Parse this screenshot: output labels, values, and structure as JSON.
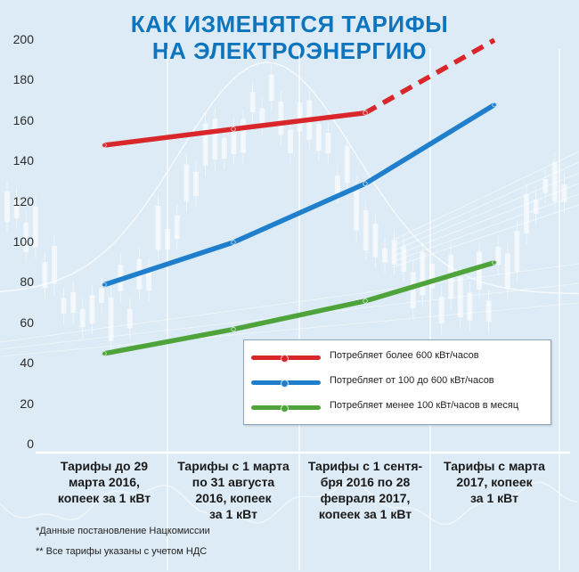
{
  "chart_data": {
    "type": "line",
    "title": "КАК ИЗМЕНЯТСЯ ТАРИФЫ\nНА ЭЛЕКТРОЭНЕРГИЮ",
    "title_lines": [
      "КАК ИЗМЕНЯТСЯ ТАРИФЫ",
      "НА ЭЛЕКТРОЭНЕРГИЮ"
    ],
    "ylim": [
      0,
      200
    ],
    "yticks": [
      0,
      20,
      40,
      60,
      80,
      100,
      120,
      140,
      160,
      180,
      200
    ],
    "categories": [
      [
        "Тарифы до 29",
        "марта 2016,",
        "копеек за 1 кВт"
      ],
      [
        "Тарифы с 1 марта",
        "по 31 августа",
        "2016, копеек",
        "за 1 кВт"
      ],
      [
        "Тарифы с 1 сентя-",
        "бря 2016 по 28",
        "февраля 2017,",
        "копеек за 1 кВт"
      ],
      [
        "Тарифы с марта",
        "2017, копеек",
        "за 1 кВт"
      ]
    ],
    "series": [
      {
        "name": "Потребляет более 600 кВт/часов",
        "color": "#d9262a",
        "values": [
          148,
          156,
          164,
          200
        ],
        "dashed_from_index": 2
      },
      {
        "name": "Потребляет от 100 до 600 кВт/часов",
        "color": "#1f7fcc",
        "values": [
          79,
          100,
          129,
          168
        ]
      },
      {
        "name": "Потребляет менее 100 кВт/часов в месяц",
        "color": "#4ea43a",
        "values": [
          45,
          57,
          71,
          90
        ]
      }
    ],
    "legend_position": "bottom-right",
    "grid": false
  },
  "footnotes": [
    "*Данные постановление Нацкомиссии",
    "** Все тарифы указаны с учетом НДС"
  ]
}
